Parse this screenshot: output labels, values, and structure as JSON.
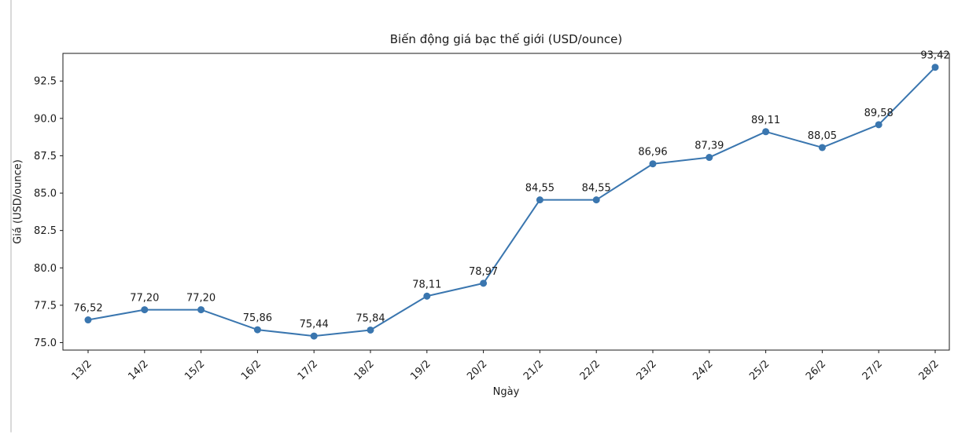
{
  "page": {
    "divider_color": "#d9d9d9",
    "background_color": "#ffffff"
  },
  "chart_data": {
    "type": "line",
    "title": "Biến động giá bạc thế giới (USD/ounce)",
    "xlabel": "Ngày",
    "ylabel": "Giá (USD/ounce)",
    "categories": [
      "13/2",
      "14/2",
      "15/2",
      "16/2",
      "17/2",
      "18/2",
      "19/2",
      "20/2",
      "21/2",
      "22/2",
      "23/2",
      "24/2",
      "25/2",
      "26/2",
      "27/2",
      "28/2"
    ],
    "values": [
      76.52,
      77.2,
      77.2,
      75.86,
      75.44,
      75.84,
      78.11,
      78.97,
      84.55,
      84.55,
      86.96,
      87.39,
      89.11,
      88.05,
      89.58,
      93.42
    ],
    "point_labels": [
      "76,52",
      "77,20",
      "77,20",
      "75,86",
      "75,44",
      "75,84",
      "78,11",
      "78,97",
      "84,55",
      "84,55",
      "86,96",
      "87,39",
      "89,11",
      "88,05",
      "89,58",
      "93,42"
    ],
    "ytick_values": [
      75.0,
      77.5,
      80.0,
      82.5,
      85.0,
      87.5,
      90.0,
      92.5
    ],
    "ytick_labels": [
      "75.0",
      "77.5",
      "80.0",
      "82.5",
      "85.0",
      "87.5",
      "90.0",
      "92.5"
    ],
    "ylim": [
      74.5,
      94.35
    ],
    "grid": false,
    "legend": null,
    "line_color": "#3a76af",
    "marker_color": "#3a76af",
    "axis_color": "#1a1a1a",
    "text_color": "#1a1a1a"
  }
}
